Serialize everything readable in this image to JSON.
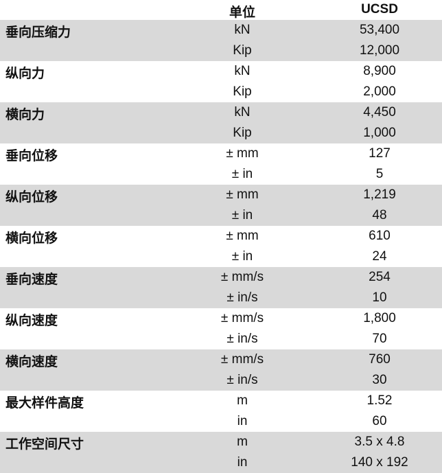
{
  "header": {
    "unit": "单位",
    "ucsd": "UCSD"
  },
  "groups": [
    {
      "label": "垂向压缩力",
      "rows": [
        {
          "unit": "kN",
          "value": "53,400"
        },
        {
          "unit": "Kip",
          "value": "12,000"
        }
      ]
    },
    {
      "label": "纵向力",
      "rows": [
        {
          "unit": "kN",
          "value": "8,900"
        },
        {
          "unit": "Kip",
          "value": "2,000"
        }
      ]
    },
    {
      "label": "横向力",
      "rows": [
        {
          "unit": "kN",
          "value": "4,450"
        },
        {
          "unit": "Kip",
          "value": "1,000"
        }
      ]
    },
    {
      "label": "垂向位移",
      "rows": [
        {
          "unit": "± mm",
          "value": "127"
        },
        {
          "unit": "± in",
          "value": "5"
        }
      ]
    },
    {
      "label": "纵向位移",
      "rows": [
        {
          "unit": "± mm",
          "value": "1,219"
        },
        {
          "unit": "± in",
          "value": "48"
        }
      ]
    },
    {
      "label": "横向位移",
      "rows": [
        {
          "unit": "± mm",
          "value": "610"
        },
        {
          "unit": "± in",
          "value": "24"
        }
      ]
    },
    {
      "label": "垂向速度",
      "rows": [
        {
          "unit": "± mm/s",
          "value": "254"
        },
        {
          "unit": "± in/s",
          "value": "10"
        }
      ]
    },
    {
      "label": "纵向速度",
      "rows": [
        {
          "unit": "± mm/s",
          "value": "1,800"
        },
        {
          "unit": "± in/s",
          "value": "70"
        }
      ]
    },
    {
      "label": "横向速度",
      "rows": [
        {
          "unit": "± mm/s",
          "value": "760"
        },
        {
          "unit": "± in/s",
          "value": "30"
        }
      ]
    },
    {
      "label": "最大样件高度",
      "rows": [
        {
          "unit": "m",
          "value": "1.52"
        },
        {
          "unit": "in",
          "value": "60"
        }
      ]
    },
    {
      "label": "工作空间尺寸",
      "rows": [
        {
          "unit": "m",
          "value": "3.5 x 4.8"
        },
        {
          "unit": "in",
          "value": "140 x 192"
        }
      ]
    }
  ],
  "colors": {
    "shade": "#d9d9d9"
  }
}
